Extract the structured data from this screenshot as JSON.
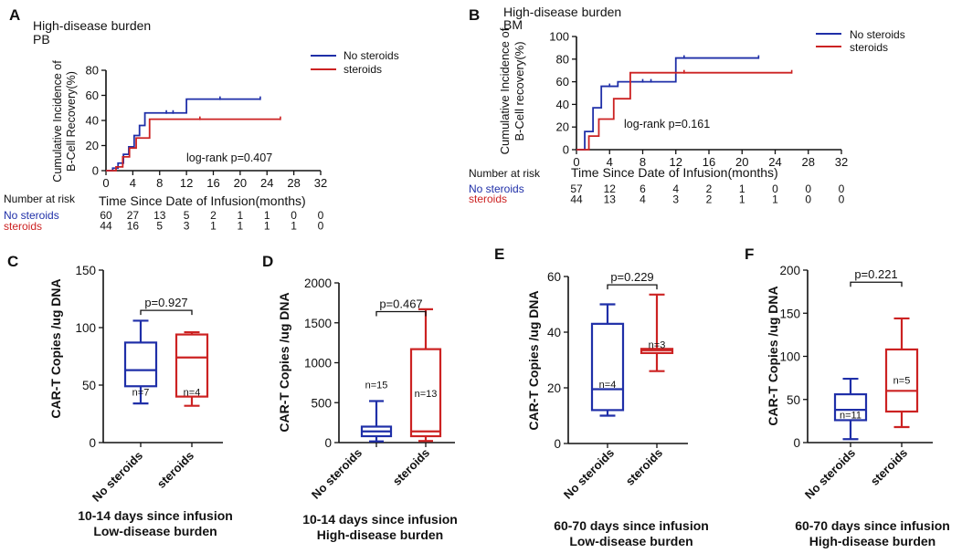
{
  "colors": {
    "no_steroids": "#1f2fa8",
    "steroids": "#cc2222",
    "axis": "#111111"
  },
  "chart_data": [
    {
      "panel": "A",
      "type": "line",
      "subtype": "cumulative-incidence-step",
      "title": "High-disease burden",
      "subtitle": "PB",
      "ylabel_line1": "Cumulative Incidence of",
      "ylabel_line2": "B-Cell Recovery(%)",
      "xlabel": "Time Since Date of Infusion(months)",
      "xlim": [
        0,
        32
      ],
      "xticks": [
        0,
        4,
        8,
        12,
        16,
        20,
        24,
        28,
        32
      ],
      "ylim": [
        0,
        80
      ],
      "yticks": [
        0,
        20,
        40,
        60,
        80
      ],
      "legend": [
        "No steroids",
        "steroids"
      ],
      "legend_position": "top-right",
      "annotation": "log-rank p=0.407",
      "series": [
        {
          "name": "No steroids",
          "color_key": "no_steroids",
          "x": [
            0,
            1,
            1.8,
            2.6,
            3.4,
            4.2,
            5.0,
            5.8,
            12,
            23
          ],
          "y": [
            0,
            2,
            6,
            13,
            19,
            28,
            36,
            46,
            57,
            57
          ],
          "censored": [
            [
              9,
              46
            ],
            [
              10,
              46
            ],
            [
              17,
              57
            ],
            [
              23,
              57
            ]
          ]
        },
        {
          "name": "steroids",
          "color_key": "steroids",
          "x": [
            0,
            1.5,
            2.5,
            3.5,
            4.5,
            6.5,
            26
          ],
          "y": [
            0,
            3,
            11,
            18,
            26,
            41,
            41
          ],
          "censored": [
            [
              14,
              41
            ],
            [
              26,
              41
            ]
          ]
        }
      ],
      "risk_table": {
        "title": "Number at risk",
        "rows": [
          {
            "name": "No steroids",
            "values": [
              "60",
              "27",
              "13",
              "5",
              "2",
              "1",
              "1",
              "0",
              "0"
            ]
          },
          {
            "name": "steroids",
            "values": [
              "44",
              "16",
              "5",
              "3",
              "1",
              "1",
              "1",
              "1",
              "0"
            ]
          }
        ]
      }
    },
    {
      "panel": "B",
      "type": "line",
      "subtype": "cumulative-incidence-step",
      "title": "High-disease burden",
      "subtitle": "BM",
      "ylabel_line1": "Cumulative Incidence of",
      "ylabel_line2": "B-Cell recovery(%)",
      "xlabel": "Time Since Date of Infusion(months)",
      "xlim": [
        0,
        32
      ],
      "xticks": [
        0,
        4,
        8,
        12,
        16,
        20,
        24,
        28,
        32
      ],
      "ylim": [
        0,
        100
      ],
      "yticks": [
        0,
        20,
        40,
        60,
        80,
        100
      ],
      "legend": [
        "No steroids",
        "steroids"
      ],
      "legend_position": "top-right",
      "annotation": "log-rank p=0.161",
      "series": [
        {
          "name": "No steroids",
          "color_key": "no_steroids",
          "x": [
            0,
            1,
            2,
            3,
            5,
            7,
            12,
            22
          ],
          "y": [
            0,
            16,
            37,
            56,
            60,
            60,
            81,
            81
          ],
          "censored": [
            [
              4,
              56
            ],
            [
              8,
              60
            ],
            [
              9,
              60
            ],
            [
              13,
              81
            ],
            [
              22,
              81
            ]
          ]
        },
        {
          "name": "steroids",
          "color_key": "steroids",
          "x": [
            0,
            1.5,
            2.7,
            4.5,
            6.5,
            26
          ],
          "y": [
            0,
            12,
            27,
            45,
            68,
            68
          ],
          "censored": [
            [
              13,
              68
            ],
            [
              26,
              68
            ]
          ]
        }
      ],
      "risk_table": {
        "title": "Number at risk",
        "rows": [
          {
            "name": "No steroids",
            "values": [
              "57",
              "12",
              "6",
              "4",
              "2",
              "1",
              "0",
              "0",
              "0"
            ]
          },
          {
            "name": "steroids",
            "values": [
              "44",
              "13",
              "4",
              "3",
              "2",
              "1",
              "1",
              "0",
              "0"
            ]
          }
        ]
      }
    },
    {
      "panel": "C",
      "type": "box",
      "ylabel": "CAR-T Copies /ug DNA",
      "ylim": [
        0,
        150
      ],
      "yticks": [
        0,
        50,
        100,
        150
      ],
      "categories": [
        "No steroids",
        "steroids"
      ],
      "subtitle_line1": "10-14 days since infusion",
      "subtitle_line2": "Low-disease burden",
      "pvalue": "p=0.927",
      "boxes": [
        {
          "name": "No steroids",
          "color_key": "no_steroids",
          "min": 34,
          "q1": 49,
          "median": 63,
          "q3": 87,
          "max": 106,
          "n": "n=7"
        },
        {
          "name": "steroids",
          "color_key": "steroids",
          "min": 32,
          "q1": 40,
          "median": 74,
          "q3": 94,
          "max": 96,
          "n": "n=4"
        }
      ]
    },
    {
      "panel": "D",
      "type": "box",
      "ylabel": "CAR-T Copies /ug DNA",
      "ylim": [
        0,
        2000
      ],
      "yticks": [
        0,
        500,
        1000,
        1500,
        2000
      ],
      "categories": [
        "No steroids",
        "steroids"
      ],
      "subtitle_line1": "10-14 days since infusion",
      "subtitle_line2": "High-disease burden",
      "pvalue": "p=0.467",
      "boxes": [
        {
          "name": "No steroids",
          "color_key": "no_steroids",
          "min": 15,
          "q1": 80,
          "median": 140,
          "q3": 200,
          "max": 520,
          "n": "n=15"
        },
        {
          "name": "steroids",
          "color_key": "steroids",
          "min": 20,
          "q1": 80,
          "median": 140,
          "q3": 1170,
          "max": 1670,
          "n": "n=13"
        }
      ]
    },
    {
      "panel": "E",
      "type": "box",
      "ylabel": "CAR-T Copies /ug DNA",
      "ylim": [
        0,
        60
      ],
      "yticks": [
        0,
        20,
        40,
        60
      ],
      "categories": [
        "No steroids",
        "steroids"
      ],
      "subtitle_line1": "60-70 days since infusion",
      "subtitle_line2": "Low-disease burden",
      "pvalue": "p=0.229",
      "boxes": [
        {
          "name": "No steroids",
          "color_key": "no_steroids",
          "min": 10,
          "q1": 12,
          "median": 19.5,
          "q3": 43,
          "max": 50,
          "n": "n=4"
        },
        {
          "name": "steroids",
          "color_key": "steroids",
          "min": 26,
          "q1": 32.5,
          "median": 33.5,
          "q3": 34,
          "max": 53.5,
          "n": "n=3"
        }
      ]
    },
    {
      "panel": "F",
      "type": "box",
      "ylabel": "CAR-T Copies /ug DNA",
      "ylim": [
        0,
        200
      ],
      "yticks": [
        0,
        50,
        100,
        150,
        200
      ],
      "categories": [
        "No steroids",
        "steroids"
      ],
      "subtitle_line1": "60-70 days since infusion",
      "subtitle_line2": "High-disease burden",
      "pvalue": "p=0.221",
      "boxes": [
        {
          "name": "No steroids",
          "color_key": "no_steroids",
          "min": 4,
          "q1": 26,
          "median": 38,
          "q3": 56,
          "max": 74,
          "n": "n=11"
        },
        {
          "name": "steroids",
          "color_key": "steroids",
          "min": 18,
          "q1": 36,
          "median": 60,
          "q3": 108,
          "max": 144,
          "n": "n=5"
        }
      ]
    }
  ]
}
